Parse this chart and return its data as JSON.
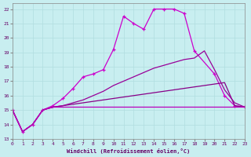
{
  "xlabel": "Windchill (Refroidissement éolien,°C)",
  "background_color": "#c8eef0",
  "xlim": [
    0,
    23
  ],
  "ylim": [
    13,
    22.4
  ],
  "yticks": [
    13,
    14,
    15,
    16,
    17,
    18,
    19,
    20,
    21,
    22
  ],
  "xticks": [
    0,
    1,
    2,
    3,
    4,
    5,
    6,
    7,
    8,
    9,
    10,
    11,
    12,
    13,
    14,
    15,
    16,
    17,
    18,
    19,
    20,
    21,
    22,
    23
  ],
  "s1_x": [
    0,
    1,
    2,
    3,
    4,
    5,
    6,
    7,
    8,
    9,
    10,
    11,
    12,
    13,
    14,
    15,
    16,
    17,
    18,
    20,
    21,
    22,
    23
  ],
  "s1_y": [
    15.0,
    13.5,
    14.0,
    15.0,
    15.3,
    15.8,
    16.5,
    17.3,
    17.5,
    17.8,
    19.2,
    21.5,
    21.0,
    20.6,
    22.0,
    22.0,
    22.0,
    21.7,
    19.1,
    17.5,
    16.0,
    15.3,
    15.2
  ],
  "s2_x": [
    0,
    1,
    2,
    3,
    4,
    5,
    6,
    7,
    8,
    9,
    10,
    11,
    12,
    13,
    14,
    15,
    16,
    17,
    18,
    19,
    20,
    21,
    22,
    23
  ],
  "s2_y": [
    15.0,
    13.5,
    14.0,
    15.0,
    15.2,
    15.3,
    15.4,
    15.5,
    15.6,
    15.7,
    15.8,
    15.9,
    16.0,
    16.1,
    16.2,
    16.3,
    16.4,
    16.5,
    16.6,
    16.7,
    16.8,
    16.9,
    15.3,
    15.2
  ],
  "s3_x": [
    0,
    1,
    2,
    3,
    4,
    5,
    6,
    7,
    8,
    9,
    10,
    11,
    12,
    13,
    14,
    15,
    16,
    17,
    18,
    19,
    20,
    21,
    22,
    23
  ],
  "s3_y": [
    15.0,
    13.5,
    14.0,
    15.0,
    15.2,
    15.3,
    15.5,
    15.7,
    16.0,
    16.3,
    16.7,
    17.0,
    17.3,
    17.6,
    17.9,
    18.1,
    18.3,
    18.5,
    18.6,
    19.1,
    17.8,
    16.4,
    15.5,
    15.2
  ],
  "s4_x": [
    0,
    1,
    2,
    3,
    4,
    5,
    6,
    7,
    8,
    9,
    10,
    11,
    12,
    13,
    14,
    15,
    16,
    17,
    18,
    19,
    20,
    21,
    22,
    23
  ],
  "s4_y": [
    15.0,
    13.5,
    14.0,
    15.0,
    15.2,
    15.2,
    15.2,
    15.2,
    15.2,
    15.2,
    15.2,
    15.2,
    15.2,
    15.2,
    15.2,
    15.2,
    15.2,
    15.2,
    15.2,
    15.2,
    15.2,
    15.2,
    15.2,
    15.2
  ],
  "color1": "#cc00cc",
  "color2": "#990099",
  "color3": "#bb00bb",
  "color4": "#880088"
}
